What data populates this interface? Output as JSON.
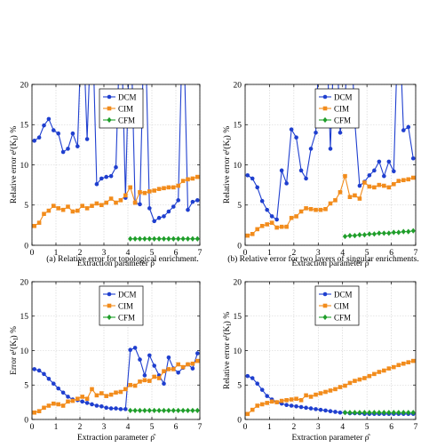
{
  "figure": {
    "captions": [
      "(a)  Relative error for topological enrichment.",
      "(b) Relative error for two layers of singular enrichments."
    ]
  },
  "colors": {
    "DCM": "#1f3fcf",
    "CIM": "#f28c1c",
    "CFM": "#1f9e2a"
  },
  "chart_data": [
    {
      "type": "line",
      "xlabel": "Extraction parameter ρ̂",
      "ylabel": "Relative error e^r(K_I) %",
      "xlim": [
        0,
        7
      ],
      "ylim": [
        0,
        20
      ],
      "xticks": [
        0,
        1,
        2,
        3,
        4,
        5,
        6,
        7
      ],
      "yticks": [
        0,
        5,
        10,
        15,
        20
      ],
      "grid": true,
      "legend": "top-right",
      "caption_index": 0,
      "series": [
        {
          "name": "DCM",
          "marker": "circle",
          "x": [
            0.1,
            0.3,
            0.5,
            0.7,
            0.9,
            1.1,
            1.3,
            1.5,
            1.7,
            1.9,
            2.1,
            2.3,
            2.5,
            2.7,
            2.9,
            3.1,
            3.3,
            3.5,
            3.7,
            3.9,
            4.1,
            4.3,
            4.5,
            4.7,
            4.9,
            5.1,
            5.3,
            5.5,
            5.7,
            5.9,
            6.1,
            6.3,
            6.5,
            6.7,
            6.9
          ],
          "y": [
            13.0,
            13.4,
            14.9,
            15.7,
            14.3,
            13.9,
            11.6,
            12.0,
            13.9,
            12.3,
            30,
            13.2,
            30,
            7.6,
            8.3,
            8.5,
            8.6,
            9.7,
            30,
            5.9,
            30,
            5.3,
            5.1,
            30,
            4.6,
            3.0,
            3.4,
            3.6,
            4.2,
            4.8,
            5.6,
            30,
            4.4,
            5.4,
            5.6
          ]
        },
        {
          "name": "CIM",
          "marker": "square",
          "x": [
            0.1,
            0.3,
            0.5,
            0.7,
            0.9,
            1.1,
            1.3,
            1.5,
            1.7,
            1.9,
            2.1,
            2.3,
            2.5,
            2.7,
            2.9,
            3.1,
            3.3,
            3.5,
            3.7,
            3.9,
            4.1,
            4.3,
            4.5,
            4.7,
            4.9,
            5.1,
            5.3,
            5.5,
            5.7,
            5.9,
            6.1,
            6.3,
            6.5,
            6.7,
            6.9
          ],
          "y": [
            2.4,
            2.8,
            3.9,
            4.3,
            4.9,
            4.6,
            4.4,
            4.8,
            4.2,
            4.3,
            4.9,
            4.6,
            4.9,
            5.2,
            5.0,
            5.3,
            5.8,
            5.3,
            5.6,
            6.2,
            7.2,
            5.3,
            6.6,
            6.5,
            6.7,
            6.8,
            7.0,
            7.1,
            7.2,
            7.2,
            7.4,
            8.0,
            8.2,
            8.3,
            8.5
          ]
        },
        {
          "name": "CFM",
          "marker": "diamond",
          "x": [
            4.1,
            4.3,
            4.5,
            4.7,
            4.9,
            5.1,
            5.3,
            5.5,
            5.7,
            5.9,
            6.1,
            6.3,
            6.5,
            6.7,
            6.9
          ],
          "y": [
            0.8,
            0.8,
            0.8,
            0.8,
            0.8,
            0.8,
            0.8,
            0.8,
            0.8,
            0.8,
            0.8,
            0.8,
            0.8,
            0.8,
            0.8
          ]
        }
      ]
    },
    {
      "type": "line",
      "xlabel": "Extraction parameter ρ̂",
      "ylabel": "Relative error e^r(K_I) %",
      "xlim": [
        0,
        7
      ],
      "ylim": [
        0,
        20
      ],
      "xticks": [
        0,
        1,
        2,
        3,
        4,
        5,
        6,
        7
      ],
      "yticks": [
        0,
        5,
        10,
        15,
        20
      ],
      "grid": true,
      "legend": "top-right",
      "caption_index": 1,
      "series": [
        {
          "name": "DCM",
          "marker": "circle",
          "x": [
            0.1,
            0.3,
            0.5,
            0.7,
            0.9,
            1.1,
            1.3,
            1.5,
            1.7,
            1.9,
            2.1,
            2.3,
            2.5,
            2.7,
            2.9,
            3.1,
            3.3,
            3.5,
            3.7,
            3.9,
            4.1,
            4.3,
            4.5,
            4.7,
            4.9,
            5.1,
            5.3,
            5.5,
            5.7,
            5.9,
            6.1,
            6.3,
            6.5,
            6.7,
            6.9
          ],
          "y": [
            8.7,
            8.3,
            7.2,
            5.5,
            4.4,
            3.6,
            3.2,
            9.3,
            7.7,
            14.4,
            13.4,
            9.3,
            8.3,
            12.0,
            14.0,
            30,
            30,
            12.0,
            30,
            14.0,
            18.0,
            30,
            15.5,
            7.4,
            7.9,
            8.7,
            9.3,
            10.4,
            8.6,
            10.4,
            9.2,
            30,
            14.3,
            14.7,
            10.8
          ]
        },
        {
          "name": "CIM",
          "marker": "square",
          "x": [
            0.1,
            0.3,
            0.5,
            0.7,
            0.9,
            1.1,
            1.3,
            1.5,
            1.7,
            1.9,
            2.1,
            2.3,
            2.5,
            2.7,
            2.9,
            3.1,
            3.3,
            3.5,
            3.7,
            3.9,
            4.1,
            4.3,
            4.5,
            4.7,
            4.9,
            5.1,
            5.3,
            5.5,
            5.7,
            5.9,
            6.1,
            6.3,
            6.5,
            6.7,
            6.9
          ],
          "y": [
            1.2,
            1.4,
            2.0,
            2.4,
            2.6,
            2.8,
            2.2,
            2.3,
            2.3,
            3.4,
            3.6,
            4.2,
            4.6,
            4.5,
            4.4,
            4.4,
            4.5,
            5.2,
            5.6,
            6.6,
            8.6,
            6.0,
            6.2,
            5.8,
            7.8,
            7.3,
            7.2,
            7.5,
            7.4,
            7.2,
            7.6,
            8.0,
            8.1,
            8.2,
            8.4
          ]
        },
        {
          "name": "CFM",
          "marker": "diamond",
          "x": [
            4.1,
            4.3,
            4.5,
            4.7,
            4.9,
            5.1,
            5.3,
            5.5,
            5.7,
            5.9,
            6.1,
            6.3,
            6.5,
            6.7,
            6.9
          ],
          "y": [
            1.1,
            1.2,
            1.2,
            1.3,
            1.3,
            1.4,
            1.4,
            1.5,
            1.5,
            1.5,
            1.6,
            1.6,
            1.7,
            1.7,
            1.8
          ]
        }
      ]
    },
    {
      "type": "line",
      "xlabel": "Extraction parameter ρ̂",
      "ylabel": "Error e^r(K_I) %",
      "xlim": [
        0,
        7
      ],
      "ylim": [
        0,
        20
      ],
      "xticks": [
        0,
        1,
        2,
        3,
        4,
        5,
        6,
        7
      ],
      "yticks": [
        0,
        5,
        10,
        15,
        20
      ],
      "grid": true,
      "legend": "top-right",
      "series": [
        {
          "name": "DCM",
          "marker": "circle",
          "x": [
            0.1,
            0.3,
            0.5,
            0.7,
            0.9,
            1.1,
            1.3,
            1.5,
            1.7,
            1.9,
            2.1,
            2.3,
            2.5,
            2.7,
            2.9,
            3.1,
            3.3,
            3.5,
            3.7,
            3.9,
            4.1,
            4.3,
            4.5,
            4.7,
            4.9,
            5.1,
            5.3,
            5.5,
            5.7,
            5.9,
            6.1,
            6.3,
            6.5,
            6.7,
            6.9
          ],
          "y": [
            7.3,
            7.1,
            6.6,
            5.9,
            5.2,
            4.5,
            3.9,
            3.3,
            2.9,
            2.8,
            2.6,
            2.4,
            2.2,
            2.0,
            1.9,
            1.7,
            1.6,
            1.6,
            1.5,
            1.5,
            10.1,
            10.4,
            8.7,
            6.4,
            9.3,
            7.8,
            6.4,
            5.2,
            9.0,
            7.4,
            6.8,
            7.5,
            8.0,
            7.4,
            9.6
          ]
        },
        {
          "name": "CIM",
          "marker": "square",
          "x": [
            0.1,
            0.3,
            0.5,
            0.7,
            0.9,
            1.1,
            1.3,
            1.5,
            1.7,
            1.9,
            2.1,
            2.3,
            2.5,
            2.7,
            2.9,
            3.1,
            3.3,
            3.5,
            3.7,
            3.9,
            4.1,
            4.3,
            4.5,
            4.7,
            4.9,
            5.1,
            5.3,
            5.5,
            5.7,
            5.9,
            6.1,
            6.3,
            6.5,
            6.7,
            6.9
          ],
          "y": [
            1.0,
            1.2,
            1.7,
            2.0,
            2.3,
            2.2,
            2.0,
            2.6,
            2.7,
            3.0,
            3.3,
            3.0,
            4.4,
            3.5,
            3.8,
            3.4,
            3.6,
            3.9,
            4.0,
            4.4,
            5.0,
            4.9,
            5.5,
            5.7,
            5.6,
            6.2,
            6.0,
            7.0,
            7.3,
            7.3,
            8.0,
            7.6,
            8.0,
            8.1,
            8.5
          ]
        },
        {
          "name": "CFM",
          "marker": "diamond",
          "x": [
            4.1,
            4.3,
            4.5,
            4.7,
            4.9,
            5.1,
            5.3,
            5.5,
            5.7,
            5.9,
            6.1,
            6.3,
            6.5,
            6.7,
            6.9
          ],
          "y": [
            1.3,
            1.3,
            1.3,
            1.3,
            1.3,
            1.3,
            1.3,
            1.3,
            1.3,
            1.3,
            1.3,
            1.3,
            1.3,
            1.3,
            1.3
          ]
        }
      ]
    },
    {
      "type": "line",
      "xlabel": "Extraction parameter ρ̂",
      "ylabel": "Relative error e^r(K_I) %",
      "xlim": [
        0,
        7
      ],
      "ylim": [
        0,
        20
      ],
      "xticks": [
        0,
        1,
        2,
        3,
        4,
        5,
        6,
        7
      ],
      "yticks": [
        0,
        5,
        10,
        15,
        20
      ],
      "grid": true,
      "legend": "top-right",
      "series": [
        {
          "name": "DCM",
          "marker": "circle",
          "x": [
            0.1,
            0.3,
            0.5,
            0.7,
            0.9,
            1.1,
            1.3,
            1.5,
            1.7,
            1.9,
            2.1,
            2.3,
            2.5,
            2.7,
            2.9,
            3.1,
            3.3,
            3.5,
            3.7,
            3.9,
            4.1,
            4.3,
            4.5,
            4.7,
            4.9,
            5.1,
            5.3,
            5.5,
            5.7,
            5.9,
            6.1,
            6.3,
            6.5,
            6.7,
            6.9
          ],
          "y": [
            6.3,
            6.0,
            5.2,
            4.3,
            3.4,
            2.9,
            2.5,
            2.3,
            2.1,
            2.0,
            1.9,
            1.8,
            1.7,
            1.6,
            1.5,
            1.4,
            1.3,
            1.2,
            1.1,
            1.0,
            1.0,
            0.9,
            0.9,
            0.9,
            0.8,
            0.8,
            0.8,
            0.8,
            0.8,
            0.8,
            0.8,
            0.8,
            0.8,
            0.8,
            0.8
          ]
        },
        {
          "name": "CIM",
          "marker": "square",
          "x": [
            0.1,
            0.3,
            0.5,
            0.7,
            0.9,
            1.1,
            1.3,
            1.5,
            1.7,
            1.9,
            2.1,
            2.3,
            2.5,
            2.7,
            2.9,
            3.1,
            3.3,
            3.5,
            3.7,
            3.9,
            4.1,
            4.3,
            4.5,
            4.7,
            4.9,
            5.1,
            5.3,
            5.5,
            5.7,
            5.9,
            6.1,
            6.3,
            6.5,
            6.7,
            6.9
          ],
          "y": [
            0.8,
            1.4,
            2.0,
            2.2,
            2.4,
            2.6,
            2.5,
            2.7,
            2.8,
            2.9,
            3.0,
            2.8,
            3.5,
            3.3,
            3.6,
            3.8,
            4.0,
            4.2,
            4.4,
            4.7,
            4.9,
            5.3,
            5.6,
            5.8,
            6.0,
            6.3,
            6.6,
            6.9,
            7.1,
            7.4,
            7.6,
            7.9,
            8.1,
            8.3,
            8.5
          ]
        },
        {
          "name": "CFM",
          "marker": "diamond",
          "x": [
            4.1,
            4.3,
            4.5,
            4.7,
            4.9,
            5.1,
            5.3,
            5.5,
            5.7,
            5.9,
            6.1,
            6.3,
            6.5,
            6.7,
            6.9
          ],
          "y": [
            1.0,
            1.0,
            1.0,
            1.0,
            1.0,
            1.0,
            1.0,
            1.0,
            1.0,
            1.0,
            1.0,
            1.0,
            1.0,
            1.0,
            1.0
          ]
        }
      ]
    }
  ]
}
